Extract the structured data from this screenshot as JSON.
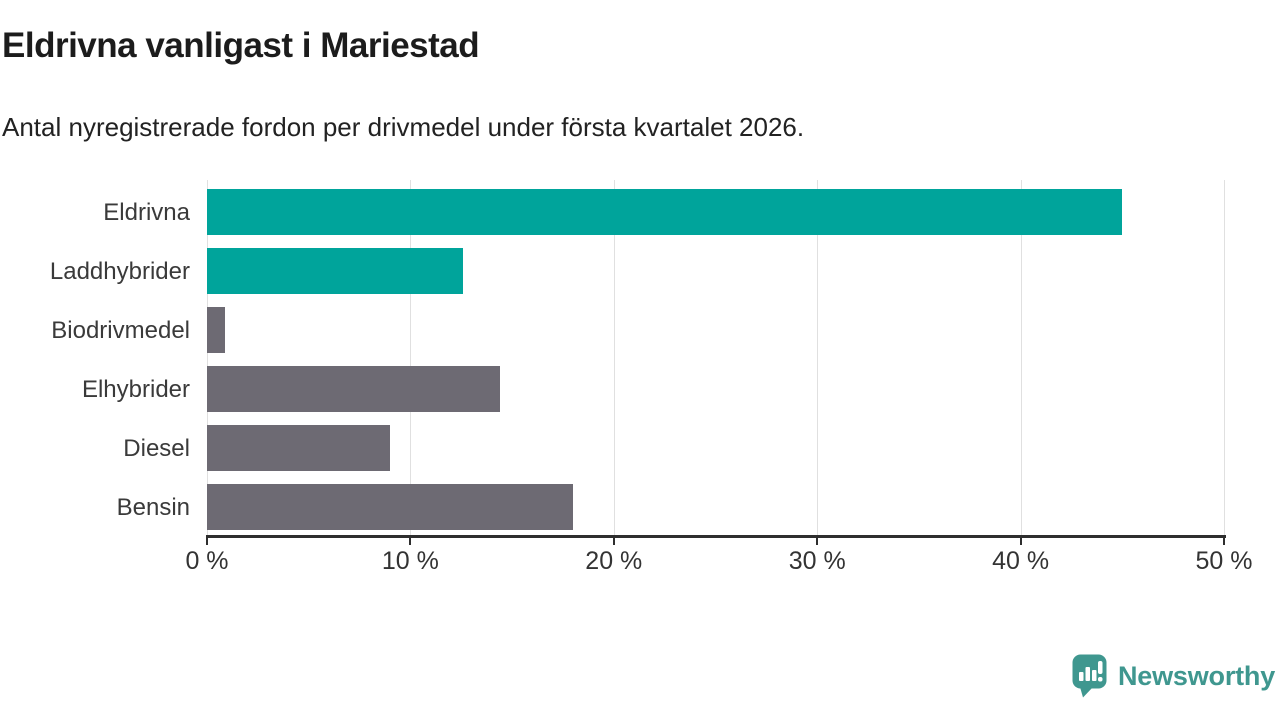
{
  "header": {
    "title": "Eldrivna vanligast i Mariestad",
    "subtitle": "Antal nyregistrerade fordon per drivmedel under första kvartalet 2026."
  },
  "chart_data": {
    "type": "bar",
    "orientation": "horizontal",
    "title": "Eldrivna vanligast i Mariestad",
    "subtitle": "Antal nyregistrerade fordon per drivmedel under första kvartalet 2026.",
    "categories": [
      "Eldrivna",
      "Laddhybrider",
      "Biodrivmedel",
      "Elhybrider",
      "Diesel",
      "Bensin"
    ],
    "values": [
      45,
      12.6,
      0.9,
      14.4,
      9,
      18
    ],
    "unit": "%",
    "xlim": [
      0,
      50
    ],
    "x_ticks": [
      0,
      10,
      20,
      30,
      40,
      50
    ],
    "x_tick_labels": [
      "0 %",
      "10 %",
      "20 %",
      "30 %",
      "40 %",
      "50 %"
    ],
    "grid": "vertical-only",
    "legend": "none",
    "bar_colors": [
      "#00a49b",
      "#00a49b",
      "#6d6a73",
      "#6d6a73",
      "#6d6a73",
      "#6d6a73"
    ],
    "highlight_color": "#00a49b",
    "default_color": "#6d6a73",
    "grid_color": "#e0e0e0",
    "axis_color": "#2e2e2e"
  },
  "footer": {
    "brand": "Newsworthy",
    "brand_color": "#3f978f"
  }
}
